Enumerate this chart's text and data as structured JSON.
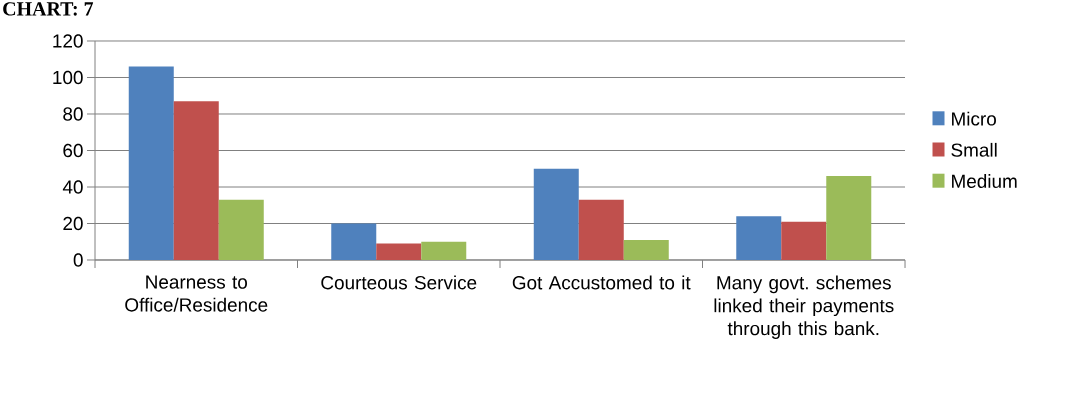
{
  "chart_data": {
    "type": "bar",
    "title": "CHART: 7",
    "categories": [
      "Nearness to Office/Residence",
      "Courteous Service",
      "Got Accustomed to it",
      "Many govt. schemes linked their payments through this bank."
    ],
    "series": [
      {
        "name": "Micro",
        "color": "#4f81bd",
        "values": [
          106,
          20,
          50,
          24
        ]
      },
      {
        "name": "Small",
        "color": "#c0504d",
        "values": [
          87,
          9,
          33,
          21
        ]
      },
      {
        "name": "Medium",
        "color": "#9bbb59",
        "values": [
          33,
          10,
          11,
          46
        ]
      }
    ],
    "ylim": [
      0,
      120
    ],
    "yticks": [
      0,
      20,
      40,
      60,
      80,
      100,
      120
    ],
    "grid": "y",
    "legend": "right"
  }
}
